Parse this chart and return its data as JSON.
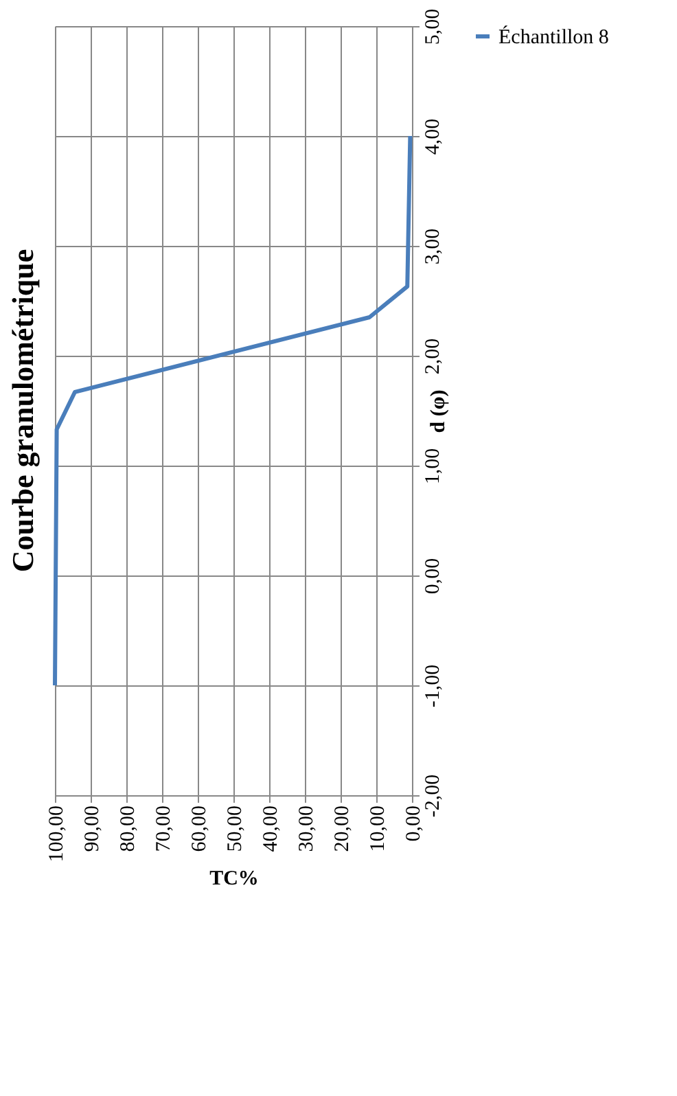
{
  "chart_data": {
    "type": "line",
    "title": "Courbe granulométrique",
    "xlabel": "TC%",
    "ylabel": "d (φ)",
    "x": [
      100,
      99.5,
      94.4,
      11.9,
      1.3,
      0.5
    ],
    "series": [
      {
        "name": "Échantillon 8",
        "color": "#4a7ebb",
        "values": [
          -1,
          1.33,
          1.67,
          2.35,
          2.63,
          4
        ]
      }
    ],
    "xlim": [
      100,
      0
    ],
    "xticks": [
      {
        "value": 100,
        "label": "100,00"
      },
      {
        "value": 90,
        "label": "90,00"
      },
      {
        "value": 80,
        "label": "80,00"
      },
      {
        "value": 70,
        "label": "70,00"
      },
      {
        "value": 60,
        "label": "60,00"
      },
      {
        "value": 50,
        "label": "50,00"
      },
      {
        "value": 40,
        "label": "40,00"
      },
      {
        "value": 30,
        "label": "30,00"
      },
      {
        "value": 20,
        "label": "20,00"
      },
      {
        "value": 10,
        "label": "10,00"
      },
      {
        "value": 0,
        "label": "0,00"
      }
    ],
    "ylim": [
      -2,
      5
    ],
    "yticks": [
      {
        "value": -2,
        "label": "-2,00"
      },
      {
        "value": -1,
        "label": "-1,00"
      },
      {
        "value": 0,
        "label": "0,00"
      },
      {
        "value": 1,
        "label": "1,00"
      },
      {
        "value": 2,
        "label": "2,00"
      },
      {
        "value": 3,
        "label": "3,00"
      },
      {
        "value": 4,
        "label": "4,00"
      },
      {
        "value": 5,
        "label": "5,00"
      }
    ],
    "grid": true,
    "legend": "right",
    "marker": "none",
    "line_style": "solid"
  }
}
